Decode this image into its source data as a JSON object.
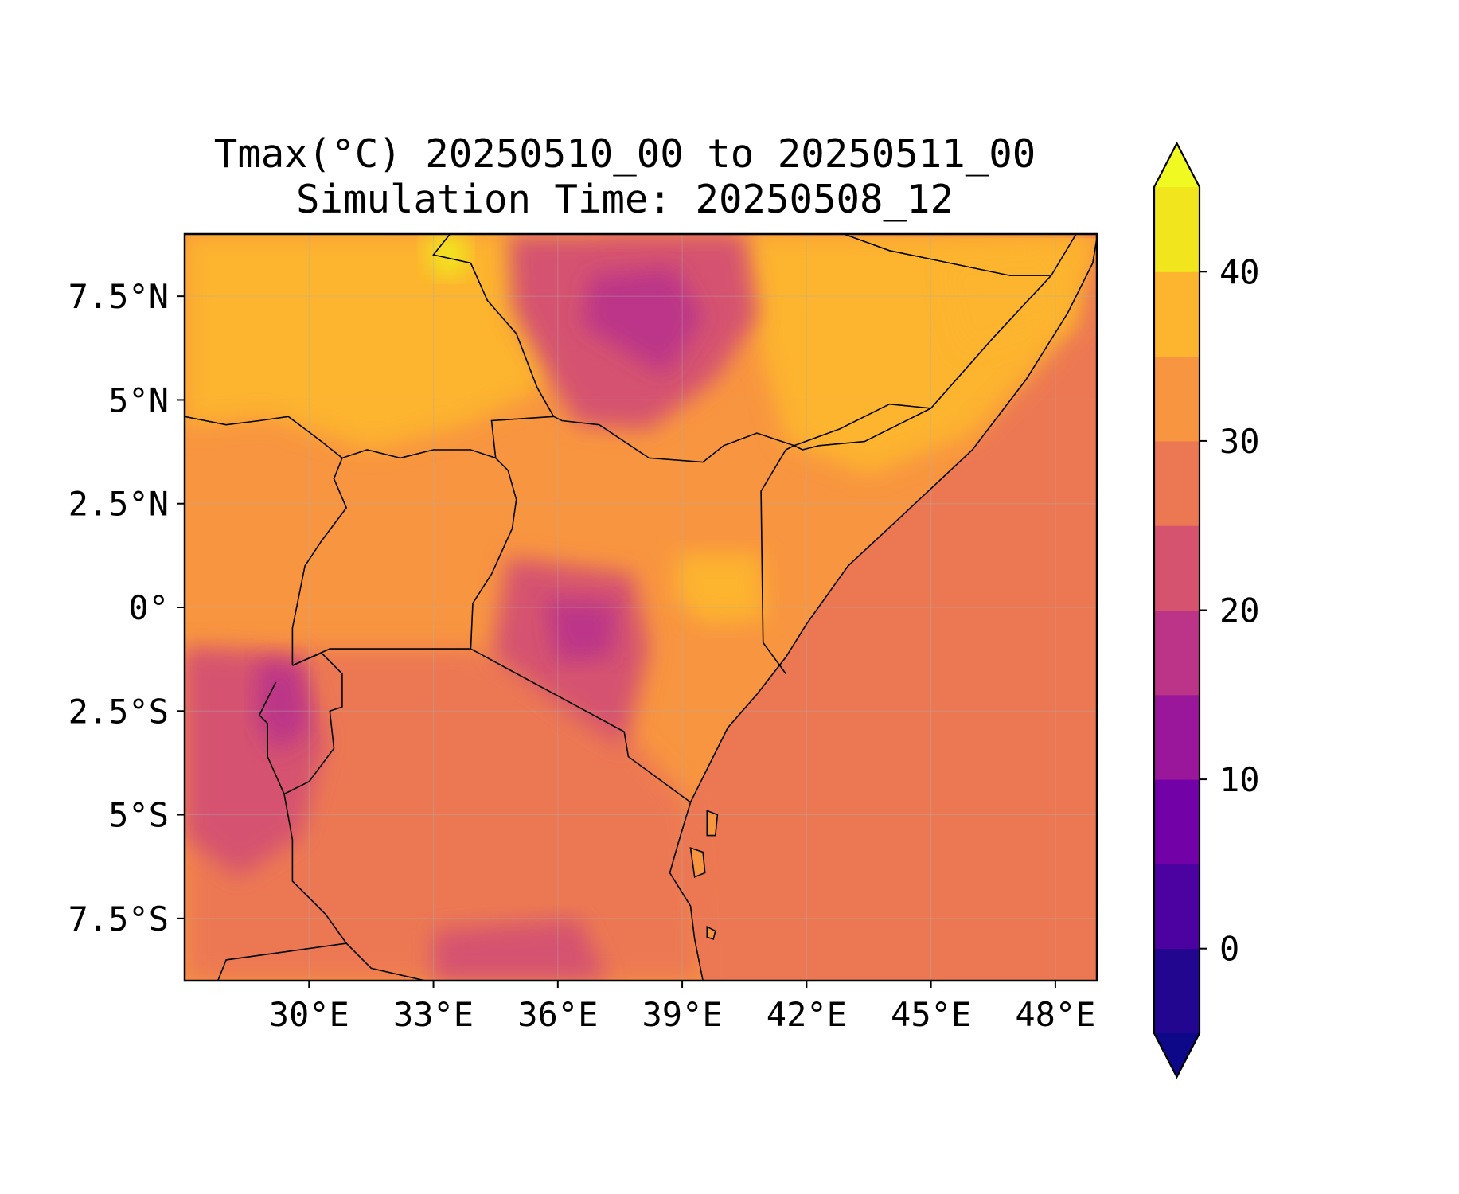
{
  "title": {
    "line1": "Tmax(°C) 20250510_00 to 20250511_00",
    "line2": "Simulation Time: 20250508_12"
  },
  "map": {
    "variable": "Tmax",
    "units": "°C",
    "extent": {
      "lon": [
        27.0,
        49.0
      ],
      "lat": [
        -9.0,
        9.0
      ]
    },
    "x_ticks": [
      {
        "value": 30,
        "label": "30°E"
      },
      {
        "value": 33,
        "label": "33°E"
      },
      {
        "value": 36,
        "label": "36°E"
      },
      {
        "value": 39,
        "label": "39°E"
      },
      {
        "value": 42,
        "label": "42°E"
      },
      {
        "value": 45,
        "label": "45°E"
      },
      {
        "value": 48,
        "label": "48°E"
      }
    ],
    "y_ticks": [
      {
        "value": 7.5,
        "label": "7.5°N"
      },
      {
        "value": 5,
        "label": "5°N"
      },
      {
        "value": 2.5,
        "label": "2.5°N"
      },
      {
        "value": 0,
        "label": "0°"
      },
      {
        "value": -2.5,
        "label": "2.5°S"
      },
      {
        "value": -5,
        "label": "5°S"
      },
      {
        "value": -7.5,
        "label": "7.5°S"
      }
    ],
    "gridlines": true,
    "ocean_value": 27.5,
    "fields": [
      {
        "name": "sudan-north",
        "value": 37.5,
        "points": [
          [
            27,
            9
          ],
          [
            37,
            9
          ],
          [
            37,
            6.5
          ],
          [
            35.5,
            5.2
          ],
          [
            33.8,
            4.4
          ],
          [
            31.5,
            3.8
          ],
          [
            29,
            4.6
          ],
          [
            27,
            4.4
          ]
        ]
      },
      {
        "name": "ethiopia-lowland-east",
        "value": 37.5,
        "points": [
          [
            40.5,
            9
          ],
          [
            49,
            9
          ],
          [
            48.5,
            6.8
          ],
          [
            46,
            4.2
          ],
          [
            43.5,
            3.2
          ],
          [
            41.5,
            4.0
          ],
          [
            40.8,
            6.5
          ]
        ]
      },
      {
        "name": "sudan-hot-spot",
        "value": 42.5,
        "points": [
          [
            32.8,
            9
          ],
          [
            33.8,
            9
          ],
          [
            33.8,
            8
          ],
          [
            33,
            8
          ]
        ]
      },
      {
        "name": "ethiopia-highland",
        "value": 22.5,
        "points": [
          [
            34.8,
            9
          ],
          [
            40.5,
            9
          ],
          [
            40.8,
            7
          ],
          [
            39.8,
            5.5
          ],
          [
            38.2,
            4.3
          ],
          [
            36.5,
            4.4
          ],
          [
            35.8,
            5.5
          ],
          [
            34.9,
            7.2
          ]
        ]
      },
      {
        "name": "ethiopia-core",
        "value": 17.5,
        "points": [
          [
            36.8,
            8
          ],
          [
            38.8,
            8.2
          ],
          [
            39.5,
            7
          ],
          [
            38.6,
            5.6
          ],
          [
            37.6,
            6.2
          ],
          [
            36.6,
            6.8
          ]
        ]
      },
      {
        "name": "kenya-highlands",
        "value": 22.5,
        "points": [
          [
            34.8,
            1.2
          ],
          [
            37.8,
            0.8
          ],
          [
            38.2,
            -1.0
          ],
          [
            37.6,
            -3.4
          ],
          [
            36.2,
            -2.5
          ],
          [
            34.4,
            -1.2
          ]
        ]
      },
      {
        "name": "kenya-core",
        "value": 17.5,
        "points": [
          [
            35.7,
            0.2
          ],
          [
            37.4,
            0.1
          ],
          [
            37.3,
            -1.2
          ],
          [
            36.0,
            -1.3
          ]
        ]
      },
      {
        "name": "west-rift",
        "value": 22.5,
        "points": [
          [
            27,
            -1
          ],
          [
            29.8,
            -1.2
          ],
          [
            30.4,
            -3.2
          ],
          [
            29.8,
            -5.5
          ],
          [
            28.3,
            -6.5
          ],
          [
            27,
            -5.5
          ]
        ]
      },
      {
        "name": "rwanda-burundi",
        "value": 17.5,
        "points": [
          [
            28.8,
            -1.3
          ],
          [
            29.8,
            -1.4
          ],
          [
            30.0,
            -2.9
          ],
          [
            29.2,
            -3.5
          ],
          [
            28.7,
            -2.6
          ]
        ]
      },
      {
        "name": "tanzania-south-highland",
        "value": 22.5,
        "points": [
          [
            33,
            -7.8
          ],
          [
            36.5,
            -7.5
          ],
          [
            37.2,
            -9
          ],
          [
            33,
            -9
          ]
        ]
      },
      {
        "name": "kenya-hot-east",
        "value": 37.5,
        "points": [
          [
            38.9,
            1.3
          ],
          [
            40.9,
            1.3
          ],
          [
            41,
            -0.3
          ],
          [
            39.5,
            -0.4
          ],
          [
            38.8,
            0.3
          ]
        ]
      },
      {
        "name": "somalia-east-hot",
        "value": 37.5,
        "points": [
          [
            45.3,
            8.3
          ],
          [
            47.8,
            8.6
          ],
          [
            48.3,
            7.0
          ],
          [
            45.8,
            6.2
          ]
        ]
      }
    ],
    "borders": [
      {
        "name": "kenya-somalia",
        "points": [
          [
            45.0,
            4.8
          ],
          [
            43.4,
            4.0
          ],
          [
            42.3,
            3.9
          ],
          [
            41.9,
            3.8
          ],
          [
            41.7,
            3.9
          ],
          [
            41.5,
            3.8
          ],
          [
            40.9,
            2.8
          ],
          [
            40.95,
            -0.85
          ],
          [
            41.5,
            -1.6
          ]
        ]
      },
      {
        "name": "kenya-ethiopia",
        "points": [
          [
            35.9,
            4.6
          ],
          [
            36.1,
            4.5
          ],
          [
            37.0,
            4.4
          ],
          [
            38.2,
            3.6
          ],
          [
            39.5,
            3.5
          ],
          [
            40.0,
            3.9
          ],
          [
            40.8,
            4.2
          ],
          [
            41.7,
            3.9
          ]
        ]
      },
      {
        "name": "ethiopia-somalia",
        "points": [
          [
            41.7,
            3.9
          ],
          [
            42.8,
            4.3
          ],
          [
            44.0,
            4.9
          ],
          [
            45.0,
            4.8
          ],
          [
            46.5,
            6.5
          ],
          [
            47.9,
            8.0
          ]
        ]
      },
      {
        "name": "ethiopia-somaliland",
        "points": [
          [
            42.9,
            9.0
          ],
          [
            44.0,
            8.6
          ],
          [
            46.9,
            8.0
          ],
          [
            47.9,
            8.0
          ],
          [
            48.5,
            9.0
          ]
        ]
      },
      {
        "name": "kenya-tanzania",
        "points": [
          [
            33.9,
            -1.0
          ],
          [
            37.6,
            -3.0
          ],
          [
            37.7,
            -3.6
          ],
          [
            39.2,
            -4.7
          ]
        ]
      },
      {
        "name": "kenya-uganda",
        "points": [
          [
            33.9,
            -1.0
          ],
          [
            33.95,
            0.1
          ],
          [
            34.4,
            0.8
          ],
          [
            34.9,
            1.9
          ],
          [
            35.0,
            2.6
          ],
          [
            34.8,
            3.3
          ],
          [
            34.5,
            3.6
          ],
          [
            34.4,
            4.5
          ],
          [
            35.9,
            4.6
          ]
        ]
      },
      {
        "name": "uganda-south",
        "points": [
          [
            33.9,
            -1.0
          ],
          [
            30.5,
            -1.0
          ],
          [
            29.6,
            -1.4
          ]
        ]
      },
      {
        "name": "sudan-ethiopia",
        "points": [
          [
            33.4,
            9.0
          ],
          [
            33.0,
            8.5
          ],
          [
            33.9,
            8.3
          ],
          [
            34.3,
            7.4
          ],
          [
            35.0,
            6.6
          ],
          [
            35.5,
            5.3
          ],
          [
            35.9,
            4.6
          ]
        ]
      },
      {
        "name": "south-sudan-uganda",
        "points": [
          [
            34.5,
            3.6
          ],
          [
            33.9,
            3.8
          ],
          [
            33.0,
            3.8
          ],
          [
            32.2,
            3.6
          ],
          [
            31.4,
            3.8
          ],
          [
            30.8,
            3.6
          ],
          [
            30.3,
            4.0
          ],
          [
            29.5,
            4.6
          ],
          [
            28.8,
            4.5
          ],
          [
            28.0,
            4.4
          ],
          [
            27.0,
            4.6
          ]
        ]
      },
      {
        "name": "drc-uganda",
        "points": [
          [
            30.8,
            3.6
          ],
          [
            30.6,
            3.1
          ],
          [
            30.9,
            2.4
          ],
          [
            30.3,
            1.6
          ],
          [
            29.9,
            1.0
          ],
          [
            29.6,
            -0.5
          ],
          [
            29.6,
            -1.4
          ]
        ]
      },
      {
        "name": "rwanda-burundi-outline",
        "points": [
          [
            29.6,
            -1.4
          ],
          [
            30.3,
            -1.1
          ],
          [
            30.8,
            -1.6
          ],
          [
            30.8,
            -2.4
          ],
          [
            30.5,
            -2.5
          ],
          [
            30.6,
            -3.4
          ],
          [
            30.0,
            -4.2
          ],
          [
            29.4,
            -4.5
          ],
          [
            29.0,
            -3.6
          ],
          [
            29.0,
            -2.8
          ],
          [
            28.8,
            -2.6
          ],
          [
            29.2,
            -1.8
          ]
        ]
      },
      {
        "name": "drc-tanzania-lake",
        "points": [
          [
            29.4,
            -4.5
          ],
          [
            29.6,
            -5.6
          ],
          [
            29.6,
            -6.6
          ],
          [
            30.4,
            -7.4
          ],
          [
            30.9,
            -8.1
          ],
          [
            31.5,
            -8.7
          ],
          [
            32.8,
            -9.0
          ]
        ]
      },
      {
        "name": "zambia-tanzania",
        "points": [
          [
            27.8,
            -9.0
          ],
          [
            28.0,
            -8.5
          ],
          [
            30.9,
            -8.1
          ]
        ]
      }
    ],
    "coastline": [
      [
        49,
        8.9
      ],
      [
        48.9,
        8.3
      ],
      [
        48.3,
        7.1
      ],
      [
        47.3,
        5.5
      ],
      [
        46.0,
        3.8
      ],
      [
        44.4,
        2.3
      ],
      [
        43.0,
        1.0
      ],
      [
        42.0,
        -0.4
      ],
      [
        41.5,
        -1.2
      ],
      [
        40.8,
        -2.1
      ],
      [
        40.1,
        -2.9
      ],
      [
        39.6,
        -3.9
      ],
      [
        39.2,
        -4.7
      ],
      [
        38.9,
        -5.7
      ],
      [
        38.7,
        -6.4
      ],
      [
        39.2,
        -7.2
      ],
      [
        39.3,
        -8.0
      ],
      [
        39.5,
        -9.0
      ]
    ],
    "islands": [
      {
        "name": "pemba",
        "points": [
          [
            39.6,
            -4.9
          ],
          [
            39.85,
            -5.0
          ],
          [
            39.8,
            -5.5
          ],
          [
            39.6,
            -5.5
          ]
        ]
      },
      {
        "name": "zanzibar",
        "points": [
          [
            39.2,
            -5.8
          ],
          [
            39.5,
            -5.9
          ],
          [
            39.55,
            -6.4
          ],
          [
            39.3,
            -6.5
          ]
        ]
      },
      {
        "name": "mafia",
        "points": [
          [
            39.6,
            -7.7
          ],
          [
            39.8,
            -7.8
          ],
          [
            39.75,
            -8.0
          ],
          [
            39.6,
            -7.95
          ]
        ]
      }
    ]
  },
  "colorbar": {
    "levels": [
      -5,
      0,
      5,
      10,
      15,
      20,
      25,
      30,
      35,
      40,
      45
    ],
    "colors": [
      "#220690",
      "#4b02a1",
      "#7301a8",
      "#9a179b",
      "#bc3488",
      "#d5536f",
      "#ec7853",
      "#f89540",
      "#fdb42f",
      "#f1e51d"
    ],
    "under_color": "#0d0887",
    "over_color": "#f0f921",
    "tick_values": [
      0,
      10,
      20,
      30,
      40
    ],
    "tick_labels": [
      "0",
      "10",
      "20",
      "30",
      "40"
    ]
  }
}
